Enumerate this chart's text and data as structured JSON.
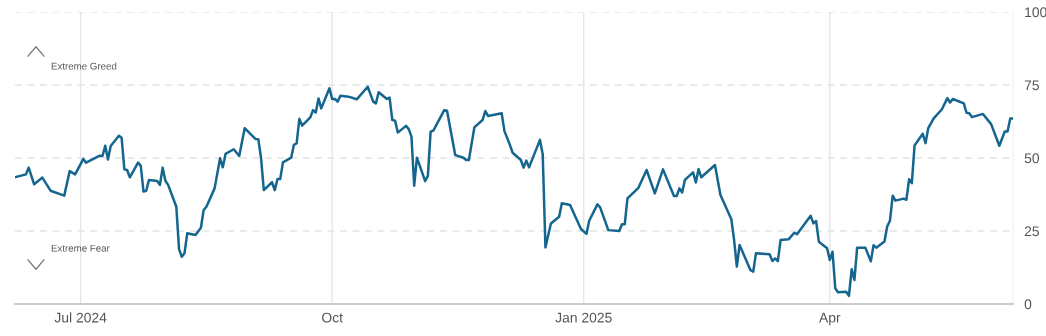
{
  "chart_data": {
    "type": "line",
    "x": [
      "2024-06-07",
      "2024-06-11",
      "2024-06-12",
      "2024-06-14",
      "2024-06-17",
      "2024-06-20",
      "2024-06-25",
      "2024-06-27",
      "2024-06-29",
      "2024-07-02",
      "2024-07-03",
      "2024-07-08",
      "2024-07-09",
      "2024-07-10",
      "2024-07-11",
      "2024-07-12",
      "2024-07-15",
      "2024-07-16",
      "2024-07-17",
      "2024-07-18",
      "2024-07-19",
      "2024-07-22",
      "2024-07-23",
      "2024-07-24",
      "2024-07-25",
      "2024-07-26",
      "2024-07-29",
      "2024-07-30",
      "2024-07-31",
      "2024-08-01",
      "2024-08-02",
      "2024-08-05",
      "2024-08-06",
      "2024-08-07",
      "2024-08-08",
      "2024-08-09",
      "2024-08-12",
      "2024-08-14",
      "2024-08-15",
      "2024-08-16",
      "2024-08-19",
      "2024-08-21",
      "2024-08-22",
      "2024-08-23",
      "2024-08-26",
      "2024-08-28",
      "2024-08-30",
      "2024-09-03",
      "2024-09-04",
      "2024-09-05",
      "2024-09-06",
      "2024-09-09",
      "2024-09-10",
      "2024-09-11",
      "2024-09-12",
      "2024-09-13",
      "2024-09-16",
      "2024-09-17",
      "2024-09-18",
      "2024-09-19",
      "2024-09-20",
      "2024-09-23",
      "2024-09-24",
      "2024-09-25",
      "2024-09-26",
      "2024-09-27",
      "2024-09-30",
      "2024-10-01",
      "2024-10-02",
      "2024-10-03",
      "2024-10-04",
      "2024-10-07",
      "2024-10-10",
      "2024-10-14",
      "2024-10-16",
      "2024-10-17",
      "2024-10-18",
      "2024-10-21",
      "2024-10-22",
      "2024-10-23",
      "2024-10-24",
      "2024-10-25",
      "2024-10-28",
      "2024-10-29",
      "2024-10-30",
      "2024-10-31",
      "2024-11-01",
      "2024-11-04",
      "2024-11-05",
      "2024-11-06",
      "2024-11-07",
      "2024-11-11",
      "2024-11-12",
      "2024-11-15",
      "2024-11-18",
      "2024-11-19",
      "2024-11-20",
      "2024-11-22",
      "2024-11-25",
      "2024-11-26",
      "2024-11-27",
      "2024-12-02",
      "2024-12-03",
      "2024-12-05",
      "2024-12-06",
      "2024-12-09",
      "2024-12-10",
      "2024-12-11",
      "2024-12-12",
      "2024-12-16",
      "2024-12-17",
      "2024-12-18",
      "2024-12-20",
      "2024-12-23",
      "2024-12-24",
      "2024-12-27",
      "2024-12-31",
      "2025-01-02",
      "2025-01-03",
      "2025-01-06",
      "2025-01-07",
      "2025-01-10",
      "2025-01-14",
      "2025-01-15",
      "2025-01-16",
      "2025-01-17",
      "2025-01-21",
      "2025-01-24",
      "2025-01-27",
      "2025-01-30",
      "2025-02-03",
      "2025-02-04",
      "2025-02-05",
      "2025-02-06",
      "2025-02-07",
      "2025-02-10",
      "2025-02-11",
      "2025-02-12",
      "2025-02-13",
      "2025-02-18",
      "2025-02-20",
      "2025-02-24",
      "2025-02-25",
      "2025-02-26",
      "2025-02-27",
      "2025-03-03",
      "2025-03-04",
      "2025-03-05",
      "2025-03-10",
      "2025-03-11",
      "2025-03-12",
      "2025-03-13",
      "2025-03-14",
      "2025-03-17",
      "2025-03-19",
      "2025-03-20",
      "2025-03-25",
      "2025-03-26",
      "2025-03-27",
      "2025-03-28",
      "2025-03-31",
      "2025-04-01",
      "2025-04-02",
      "2025-04-03",
      "2025-04-04",
      "2025-04-07",
      "2025-04-08",
      "2025-04-09",
      "2025-04-10",
      "2025-04-11",
      "2025-04-14",
      "2025-04-16",
      "2025-04-17",
      "2025-04-18",
      "2025-04-21",
      "2025-04-22",
      "2025-04-23",
      "2025-04-24",
      "2025-04-25",
      "2025-04-28",
      "2025-04-29",
      "2025-04-30",
      "2025-05-01",
      "2025-05-02",
      "2025-05-05",
      "2025-05-06",
      "2025-05-07",
      "2025-05-09",
      "2025-05-12",
      "2025-05-14",
      "2025-05-15",
      "2025-05-16",
      "2025-05-20",
      "2025-05-21",
      "2025-05-22",
      "2025-05-23",
      "2025-05-27",
      "2025-05-30",
      "2025-06-02",
      "2025-06-04",
      "2025-06-05",
      "2025-06-06",
      "2025-06-07"
    ],
    "series": [
      {
        "color": "#15668f",
        "values": [
          43.4,
          44.4,
          46.7,
          41,
          43.3,
          38.8,
          37.1,
          45.5,
          44.4,
          49.7,
          48.4,
          50.8,
          50.7,
          54.2,
          49.5,
          54.1,
          57.6,
          56.9,
          46.1,
          45.9,
          43.4,
          48.4,
          47.3,
          38.5,
          38.8,
          42.5,
          42.1,
          40.8,
          46.7,
          42.2,
          40.8,
          33.3,
          18.7,
          16.2,
          17.4,
          24.2,
          23.6,
          26.1,
          32.2,
          33.3,
          39.6,
          49.9,
          46.8,
          51.4,
          53,
          50.7,
          60.2,
          56.5,
          56.4,
          49.9,
          39,
          41.7,
          39,
          42.8,
          42.8,
          48.5,
          50.1,
          54.5,
          55,
          63.4,
          61.1,
          63.9,
          66.4,
          65.6,
          70.4,
          67,
          73.9,
          70.2,
          70.2,
          69.3,
          71.3,
          71,
          70.1,
          74.4,
          69.3,
          68.7,
          72.5,
          70.2,
          70.7,
          63,
          62.8,
          58.7,
          61,
          59.9,
          57.3,
          40.5,
          50.1,
          42.1,
          43.9,
          59,
          59.4,
          66.4,
          66.2,
          51,
          50.1,
          49.3,
          49.3,
          60.5,
          63,
          66.1,
          64.4,
          65.3,
          59.2,
          54.5,
          51.8,
          49.3,
          46.7,
          49.1,
          46.8,
          56.2,
          51.3,
          19.4,
          27.6,
          29.9,
          34.5,
          33.9,
          25.7,
          24,
          28.5,
          34.1,
          33.1,
          25.3,
          25,
          27.3,
          27.3,
          36.2,
          39.8,
          45.9,
          37.9,
          46.1,
          37,
          37,
          39.6,
          38.2,
          42.5,
          45.1,
          41.6,
          46.2,
          43.4,
          47.6,
          37.3,
          29,
          21.9,
          12.8,
          20.2,
          11.6,
          11.1,
          17.4,
          17,
          14.7,
          15.6,
          14.7,
          21.9,
          22.2,
          24.4,
          23.9,
          30.2,
          27.6,
          28.4,
          21.3,
          19.1,
          15.1,
          17.9,
          5.4,
          4,
          4.2,
          2.8,
          11.9,
          8.2,
          19.3,
          19.3,
          14.6,
          20.1,
          19.3,
          21.4,
          26.6,
          28.5,
          37.1,
          35.4,
          36.1,
          35.7,
          42.7,
          41.4,
          54.3,
          58.3,
          55.1,
          60.2,
          63.6,
          66.7,
          70.5,
          69,
          70.2,
          68.7,
          65.5,
          65.3,
          64,
          65.1,
          61.6,
          54.2,
          59.1,
          59.1,
          63.5,
          63.5
        ]
      }
    ],
    "xlim": [
      "2024-06-07",
      "2025-06-07"
    ],
    "xticks": [
      {
        "value": "2024-07-01",
        "label": "Jul 2024"
      },
      {
        "value": "2024-10-01",
        "label": "Oct"
      },
      {
        "value": "2025-01-01",
        "label": "Jan 2025"
      },
      {
        "value": "2025-04-01",
        "label": "Apr"
      }
    ],
    "ylim": [
      0,
      100
    ],
    "yticks": [
      0,
      25,
      50,
      75,
      100
    ],
    "grid": true,
    "line_style": "solid",
    "marker": "none",
    "ref_lines": [
      {
        "axis": "y",
        "value": 75,
        "label": "Extreme Greed",
        "line_style": "dashed",
        "color": "#e3e3e3"
      },
      {
        "axis": "y",
        "value": 25,
        "label": "Extreme Fear",
        "line_style": "dashed",
        "color": "#e3e3e3"
      },
      {
        "axis": "y",
        "value": 50,
        "line_style": "dashed",
        "color": "#e3e3e3"
      }
    ]
  }
}
